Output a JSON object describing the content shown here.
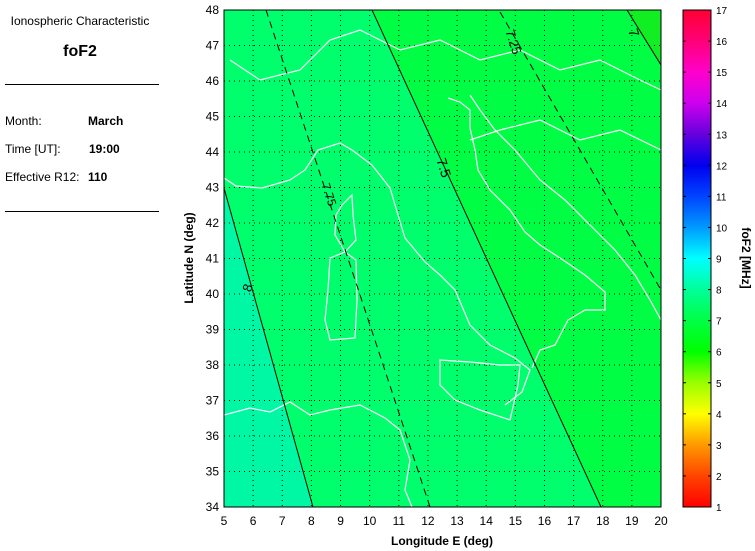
{
  "info_panel": {
    "heading": "Ionospheric Characteristic",
    "parameter": "foF2",
    "fields": [
      {
        "label": "Month:",
        "value": "March"
      },
      {
        "label": "Time [UT]:",
        "value": "19:00"
      },
      {
        "label": "Effective R12:",
        "value": "110"
      }
    ]
  },
  "map": {
    "x_axis": {
      "label": "Longitude E (deg)",
      "range": [
        5,
        20
      ],
      "ticks": [
        "5",
        "6",
        "7",
        "8",
        "9",
        "10",
        "11",
        "12",
        "13",
        "14",
        "15",
        "16",
        "17",
        "18",
        "19",
        "20"
      ]
    },
    "y_axis": {
      "label": "Latitude N (deg)",
      "range": [
        34,
        48
      ],
      "ticks": [
        "34",
        "35",
        "36",
        "37",
        "38",
        "39",
        "40",
        "41",
        "42",
        "43",
        "44",
        "45",
        "46",
        "47",
        "48"
      ]
    },
    "grid": "dotted",
    "coastline_color": "#ffffff",
    "contours": [
      {
        "label": "8",
        "style": "solid"
      },
      {
        "label": "7.75",
        "style": "dashed"
      },
      {
        "label": "7.5",
        "style": "solid"
      },
      {
        "label": "7.25",
        "style": "dashed"
      },
      {
        "label": "7",
        "style": "solid"
      }
    ],
    "fill_colors": {
      "above_8": "#00f8a4",
      "between_7_5_8": "#00ff6c",
      "between_7_7_5": "#00ff44",
      "below_7": "#11ee22"
    }
  },
  "colorbar": {
    "label": "foF2 [MHz]",
    "range": [
      1,
      17
    ],
    "ticks": [
      "1",
      "2",
      "3",
      "4",
      "5",
      "6",
      "7",
      "8",
      "9",
      "10",
      "11",
      "12",
      "13",
      "14",
      "15",
      "16",
      "17"
    ],
    "colors": [
      "#ff0000",
      "#ff4400",
      "#ff9900",
      "#ffff00",
      "#99ff00",
      "#00ff00",
      "#00ff44",
      "#00ff99",
      "#00ffff",
      "#0099ff",
      "#0044ff",
      "#0000ee",
      "#6600dd",
      "#cc00ee",
      "#ff00cc",
      "#ff0077",
      "#ff0033"
    ]
  }
}
